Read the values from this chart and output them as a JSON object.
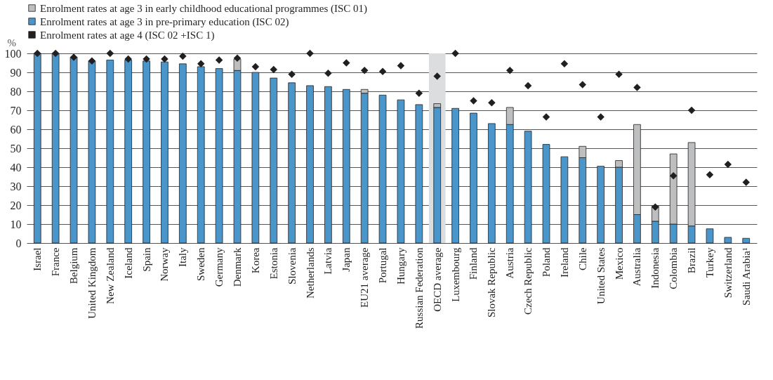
{
  "chart_data": {
    "type": "bar",
    "stacked": true,
    "ylabel": "%",
    "ylim": [
      0,
      100
    ],
    "yticks": [
      0,
      10,
      20,
      30,
      40,
      50,
      60,
      70,
      80,
      90,
      100
    ],
    "grid": "y",
    "legend": "top",
    "marker": "diamond",
    "categories": [
      "Israel",
      "France",
      "Belgium",
      "United Kingdom",
      "New Zealand",
      "Iceland",
      "Spain",
      "Norway",
      "Italy",
      "Sweden",
      "Germany",
      "Denmark",
      "Korea",
      "Estonia",
      "Slovenia",
      "Netherlands",
      "Latvia",
      "Japan",
      "EU21 average",
      "Portugal",
      "Hungary",
      "Russian Federation",
      "OECD average",
      "Luxembourg",
      "Finland",
      "Slovak Republic",
      "Austria",
      "Czech Republic",
      "Poland",
      "Ireland",
      "Chile",
      "United States",
      "Mexico",
      "Australia",
      "Indonesia",
      "Colombia",
      "Brazil",
      "Turkey",
      "Switzerland",
      "Saudi Arabia¹"
    ],
    "bands": [
      {
        "axis": "x",
        "from": "OECD average",
        "to": "OECD average",
        "color": "#dcdddf"
      }
    ],
    "series": [
      {
        "name": "Enrolment rates at age 3 in pre-primary education (ISC 02)",
        "color": "#4a95c9",
        "values": [
          100,
          100,
          98,
          96,
          96.5,
          96.5,
          96,
          95.5,
          94.5,
          93,
          92,
          91,
          90,
          87,
          84.5,
          83,
          82.5,
          81,
          79,
          78,
          75.5,
          73,
          71.5,
          71,
          68.5,
          63,
          62.5,
          59,
          52,
          45.5,
          45,
          40.5,
          40,
          15,
          11.5,
          10,
          9,
          7.5,
          3,
          2.5
        ]
      },
      {
        "name": "Enrolment rates at age 3 in early childhood educational programmes (ISC 01)",
        "color": "#bcbec0",
        "values": [
          null,
          null,
          null,
          null,
          null,
          null,
          null,
          null,
          null,
          null,
          null,
          6,
          null,
          null,
          null,
          null,
          null,
          null,
          2,
          null,
          null,
          null,
          2,
          null,
          null,
          null,
          9,
          null,
          null,
          null,
          6,
          null,
          3.5,
          47.5,
          8,
          37,
          44,
          null,
          null,
          null
        ]
      },
      {
        "name": "Enrolment rates at age 4 (ISC 02 +ISC 1)",
        "type": "scatter",
        "color": "#231f20",
        "values": [
          100,
          100,
          98,
          96,
          100,
          97,
          97,
          97,
          98.5,
          94.5,
          96.5,
          97.5,
          93,
          91.5,
          89,
          100,
          89.5,
          95,
          91,
          90.5,
          93.5,
          79,
          88,
          100,
          75,
          74,
          91,
          83,
          66.5,
          94.5,
          83.5,
          66.5,
          89,
          82,
          19,
          35.5,
          70,
          36,
          41.5,
          32
        ]
      }
    ]
  }
}
